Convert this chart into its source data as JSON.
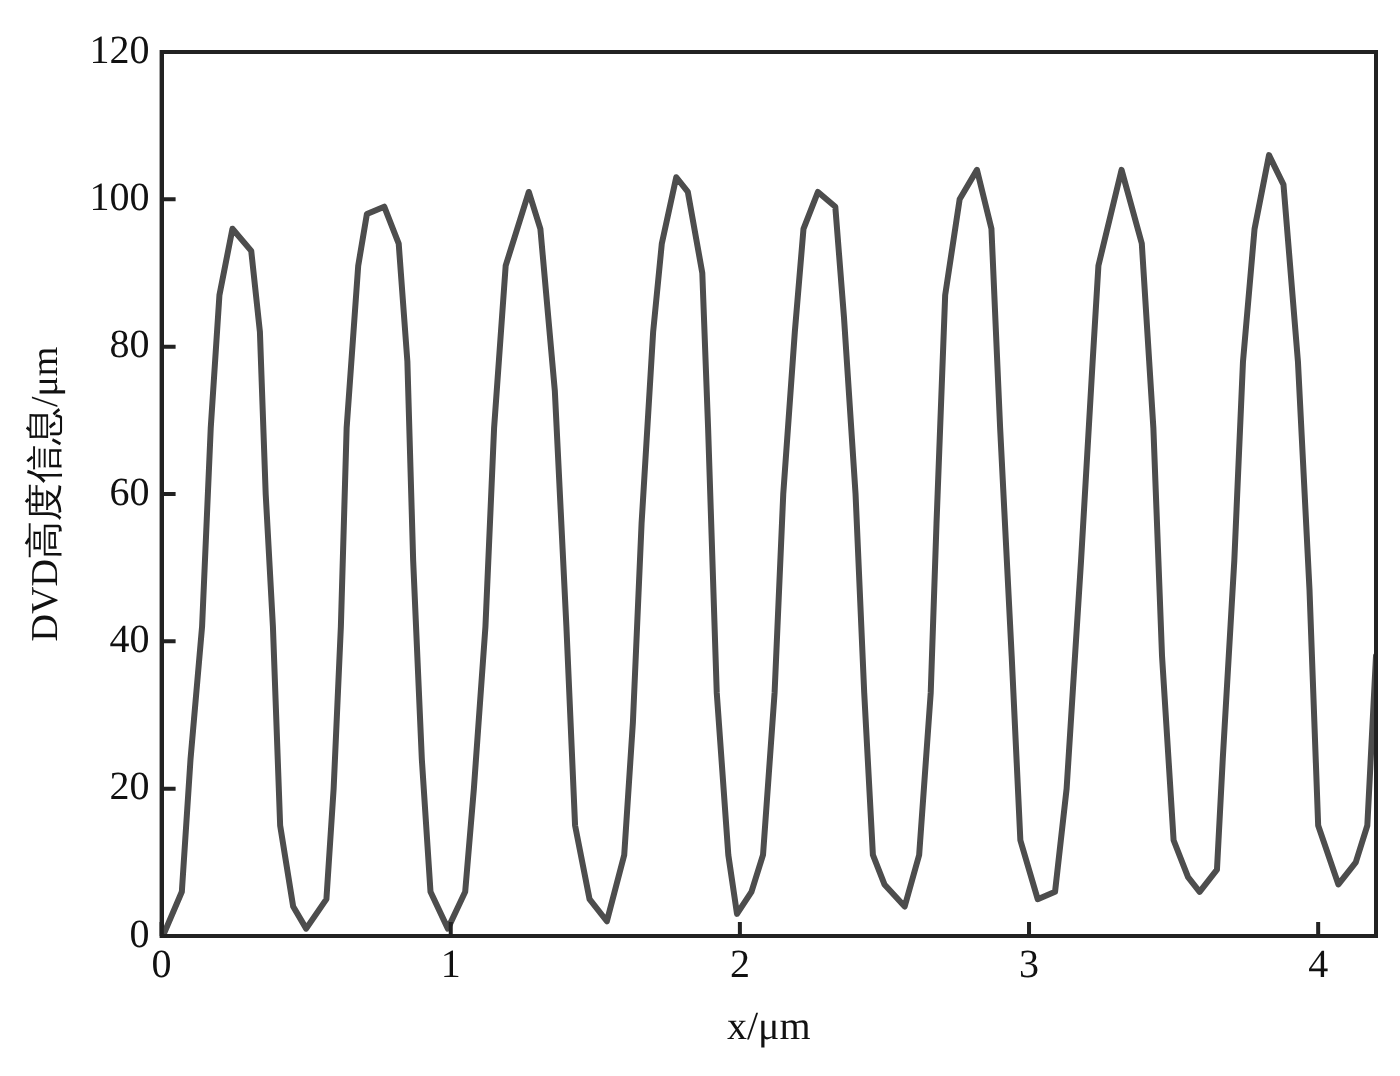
{
  "chart_data": {
    "type": "line",
    "xlabel": "x/μm",
    "ylabel": "DVD高度信息/μm",
    "xlim": [
      0,
      4.2
    ],
    "xticks": [
      0,
      1,
      2,
      3,
      4
    ],
    "ylim": [
      0,
      120
    ],
    "yticks": [
      0,
      20,
      40,
      60,
      80,
      100,
      120
    ],
    "grid": false,
    "legend": false,
    "marker": "none",
    "line_style": "solid",
    "series": [
      {
        "color": "#4d4d4d",
        "x": [
          0.01,
          0.07,
          0.1,
          0.14,
          0.17,
          0.2,
          0.245,
          0.31,
          0.34,
          0.36,
          0.385,
          0.41,
          0.455,
          0.5,
          0.57,
          0.595,
          0.62,
          0.64,
          0.68,
          0.71,
          0.77,
          0.82,
          0.85,
          0.87,
          0.9,
          0.93,
          0.99,
          1.05,
          1.08,
          1.12,
          1.15,
          1.19,
          1.27,
          1.31,
          1.36,
          1.4,
          1.43,
          1.48,
          1.54,
          1.6,
          1.63,
          1.66,
          1.7,
          1.73,
          1.78,
          1.82,
          1.87,
          1.89,
          1.92,
          1.96,
          1.99,
          2.04,
          2.08,
          2.12,
          2.15,
          2.19,
          2.22,
          2.27,
          2.33,
          2.36,
          2.4,
          2.43,
          2.46,
          2.5,
          2.57,
          2.62,
          2.66,
          2.68,
          2.71,
          2.76,
          2.82,
          2.87,
          2.9,
          2.94,
          2.97,
          3.03,
          3.09,
          3.13,
          3.18,
          3.22,
          3.24,
          3.32,
          3.39,
          3.43,
          3.46,
          3.5,
          3.55,
          3.59,
          3.65,
          3.67,
          3.71,
          3.74,
          3.78,
          3.83,
          3.88,
          3.93,
          3.97,
          4.0,
          4.07,
          4.13,
          4.17,
          4.2
        ],
        "values": [
          0.5,
          6,
          24,
          42,
          69,
          87,
          96,
          93,
          82,
          60,
          42,
          15,
          4,
          1,
          5,
          20,
          42,
          69,
          91,
          98,
          99,
          94,
          78,
          51,
          24,
          6,
          1,
          6,
          20,
          42,
          69,
          91,
          101,
          96,
          74,
          42,
          15,
          5,
          2,
          11,
          29,
          56,
          82,
          94,
          103,
          101,
          90,
          69,
          33,
          11,
          3,
          6,
          11,
          33,
          60,
          82,
          96,
          101,
          99,
          84,
          60,
          33,
          11,
          7,
          4,
          11,
          33,
          56,
          87,
          100,
          104,
          96,
          69,
          38,
          13,
          5,
          6,
          20,
          51,
          78,
          91,
          104,
          94,
          69,
          38,
          13,
          8,
          6,
          9,
          24,
          51,
          78,
          96,
          106,
          102,
          78,
          47,
          15,
          7,
          10,
          15,
          38
        ]
      }
    ]
  }
}
